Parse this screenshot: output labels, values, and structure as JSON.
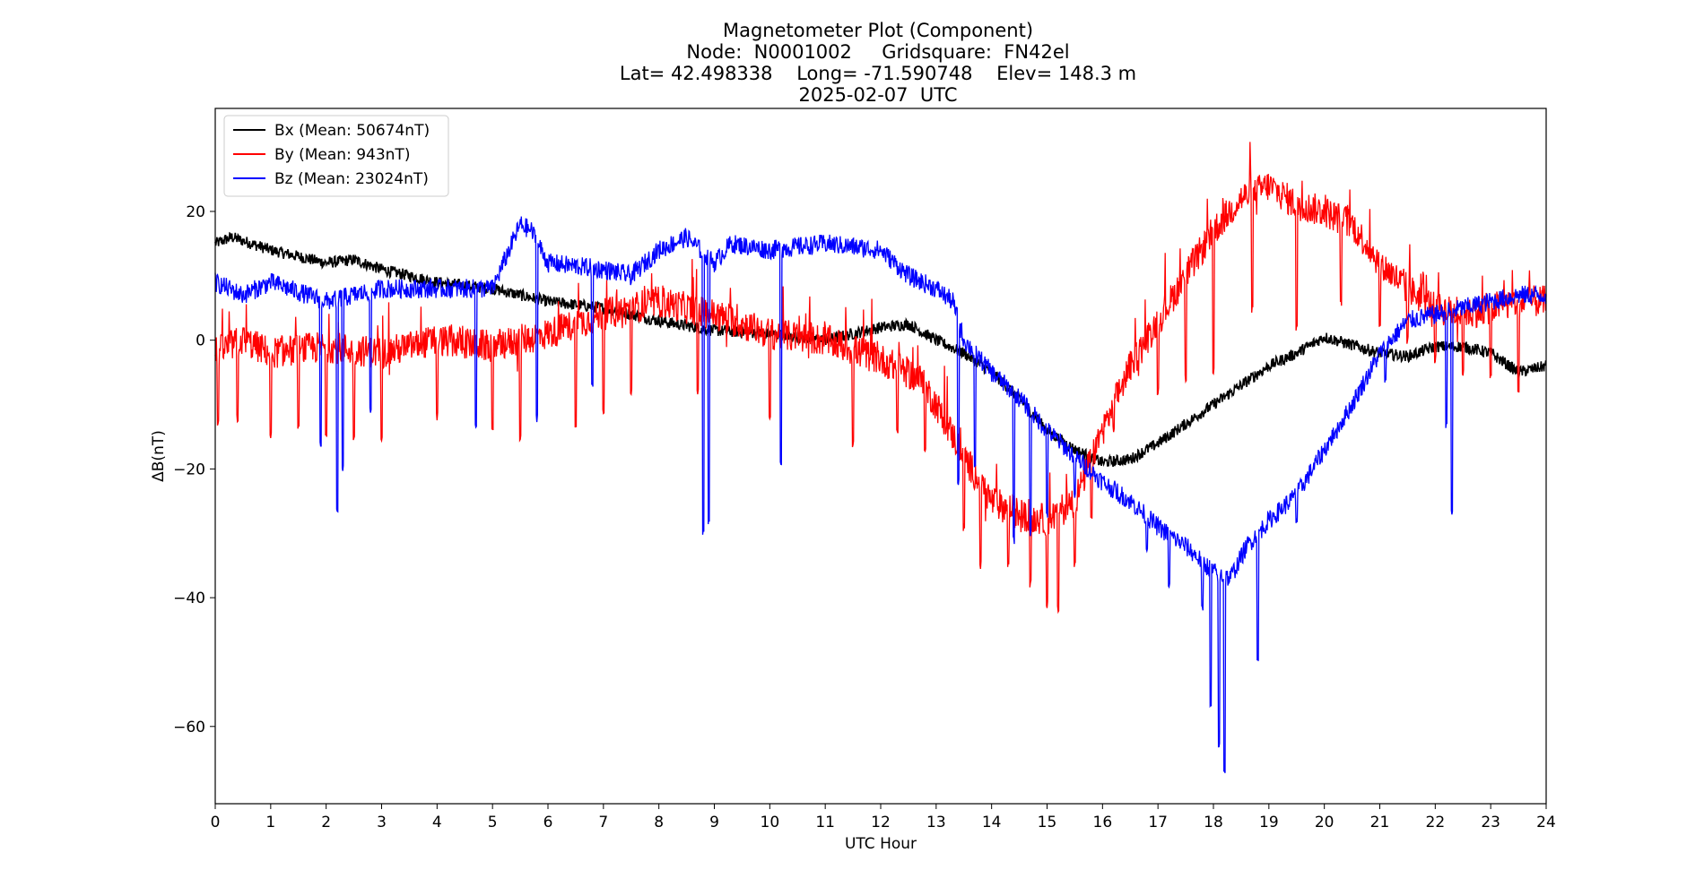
{
  "chart_data": {
    "type": "line",
    "title_lines": [
      "Magnetometer Plot (Component)",
      "Node:  N0001002     Gridsquare:  FN42el",
      "Lat= 42.498338    Long= -71.590748    Elev= 148.3 m",
      "2025-02-07  UTC"
    ],
    "xlabel": "UTC Hour",
    "ylabel": "ΔB(nT)",
    "xlim": [
      0,
      24
    ],
    "ylim": [
      -72,
      36
    ],
    "xticks": [
      0,
      1,
      2,
      3,
      4,
      5,
      6,
      7,
      8,
      9,
      10,
      11,
      12,
      13,
      14,
      15,
      16,
      17,
      18,
      19,
      20,
      21,
      22,
      23,
      24
    ],
    "yticks": [
      20,
      0,
      -20,
      -40,
      -60
    ],
    "ytick_labels": [
      "20",
      "0",
      "−20",
      "−40",
      "−60"
    ],
    "grid": false,
    "legend_position": "top-left",
    "series": [
      {
        "name": "Bx (Mean: 50674nT)",
        "color": "#000000",
        "noise": 0.9,
        "points": [
          [
            0,
            15
          ],
          [
            0.3,
            16
          ],
          [
            1,
            14
          ],
          [
            2,
            12
          ],
          [
            2.5,
            12.5
          ],
          [
            3,
            11
          ],
          [
            4,
            9
          ],
          [
            5,
            8
          ],
          [
            6,
            6
          ],
          [
            7,
            5
          ],
          [
            8,
            3
          ],
          [
            9,
            1.5
          ],
          [
            10,
            1
          ],
          [
            11,
            0
          ],
          [
            12,
            2
          ],
          [
            12.5,
            2.5
          ],
          [
            13,
            0
          ],
          [
            13.5,
            -2
          ],
          [
            14,
            -5
          ],
          [
            14.5,
            -9
          ],
          [
            15,
            -14
          ],
          [
            15.5,
            -17
          ],
          [
            16,
            -19
          ],
          [
            16.5,
            -18.5
          ],
          [
            17,
            -16
          ],
          [
            17.5,
            -13
          ],
          [
            18,
            -10
          ],
          [
            18.5,
            -7
          ],
          [
            19,
            -4
          ],
          [
            19.5,
            -2
          ],
          [
            20,
            0.5
          ],
          [
            20.4,
            -0.5
          ],
          [
            21,
            -2
          ],
          [
            21.5,
            -2.5
          ],
          [
            22,
            -1
          ],
          [
            22.5,
            -1
          ],
          [
            23,
            -2
          ],
          [
            23.5,
            -5
          ],
          [
            24,
            -4
          ]
        ]
      },
      {
        "name": "By (Mean: 943nT)",
        "color": "#ff0000",
        "noise": 2.5,
        "spikes": [
          [
            0.05,
            -13
          ],
          [
            0.4,
            -12
          ],
          [
            1,
            -15
          ],
          [
            1.5,
            -14
          ],
          [
            2,
            -15
          ],
          [
            2.5,
            -15
          ],
          [
            3,
            -15
          ],
          [
            4,
            -12
          ],
          [
            5,
            -14
          ],
          [
            5.5,
            -15
          ],
          [
            6.5,
            -13
          ],
          [
            7,
            -11
          ],
          [
            7.5,
            -8
          ],
          [
            8.7,
            -8
          ],
          [
            10,
            -12
          ],
          [
            11.5,
            -16
          ],
          [
            12.3,
            -14
          ],
          [
            12.8,
            -17
          ],
          [
            13.5,
            -29
          ],
          [
            13.8,
            -35
          ],
          [
            14.3,
            -35
          ],
          [
            14.7,
            -38
          ],
          [
            15,
            -41
          ],
          [
            15.2,
            -42
          ],
          [
            15.5,
            -35
          ],
          [
            15.8,
            -28
          ],
          [
            16.2,
            -14
          ],
          [
            17,
            -8
          ],
          [
            17.5,
            -6
          ],
          [
            18,
            -5
          ],
          [
            18.7,
            5
          ],
          [
            19.5,
            2
          ],
          [
            20.3,
            6
          ],
          [
            21,
            2
          ],
          [
            21.5,
            0
          ],
          [
            22,
            -3
          ],
          [
            22.5,
            -5
          ],
          [
            23,
            -6
          ],
          [
            23.5,
            -8
          ]
        ],
        "points": [
          [
            0,
            -2
          ],
          [
            0.5,
            0
          ],
          [
            1,
            -2
          ],
          [
            2,
            -1
          ],
          [
            3,
            -2
          ],
          [
            4,
            0
          ],
          [
            5,
            -1
          ],
          [
            6,
            1
          ],
          [
            7,
            4
          ],
          [
            8,
            6
          ],
          [
            9,
            4
          ],
          [
            10,
            1
          ],
          [
            11,
            0
          ],
          [
            12,
            -3
          ],
          [
            12.7,
            -6
          ],
          [
            13,
            -10
          ],
          [
            13.5,
            -18
          ],
          [
            14,
            -25
          ],
          [
            14.5,
            -27
          ],
          [
            15,
            -28
          ],
          [
            15.5,
            -25
          ],
          [
            16,
            -14
          ],
          [
            16.5,
            -4
          ],
          [
            17,
            3
          ],
          [
            17.5,
            10
          ],
          [
            18,
            17
          ],
          [
            18.5,
            22
          ],
          [
            19,
            24
          ],
          [
            19.5,
            21
          ],
          [
            20,
            20
          ],
          [
            20.5,
            18
          ],
          [
            21,
            12
          ],
          [
            21.5,
            8
          ],
          [
            22,
            5
          ],
          [
            22.5,
            4
          ],
          [
            23,
            5
          ],
          [
            23.5,
            6
          ],
          [
            24,
            6
          ]
        ]
      },
      {
        "name": "Bz (Mean: 23024nT)",
        "color": "#0000ff",
        "noise": 1.5,
        "spikes": [
          [
            1.9,
            -16
          ],
          [
            2.2,
            -27
          ],
          [
            2.3,
            -20
          ],
          [
            2.8,
            -11
          ],
          [
            4.7,
            -13
          ],
          [
            5.8,
            -12
          ],
          [
            6.8,
            -7
          ],
          [
            8.8,
            -30
          ],
          [
            8.9,
            -28
          ],
          [
            10.2,
            -19
          ],
          [
            13.4,
            -22
          ],
          [
            13.7,
            -20
          ],
          [
            14.4,
            -31
          ],
          [
            14.7,
            -30
          ],
          [
            15,
            -27
          ],
          [
            15.5,
            -24
          ],
          [
            16.3,
            -25
          ],
          [
            16.8,
            -32
          ],
          [
            17.2,
            -38
          ],
          [
            17.8,
            -42
          ],
          [
            17.95,
            -57
          ],
          [
            18.1,
            -63
          ],
          [
            18.2,
            -67
          ],
          [
            18.8,
            -50
          ],
          [
            19.5,
            -28
          ],
          [
            20.2,
            -14
          ],
          [
            21.1,
            -6
          ],
          [
            22.3,
            -27
          ],
          [
            22.2,
            -13
          ]
        ],
        "points": [
          [
            0,
            9
          ],
          [
            0.5,
            7
          ],
          [
            1,
            9
          ],
          [
            2,
            6
          ],
          [
            3,
            8
          ],
          [
            4,
            8
          ],
          [
            5,
            8
          ],
          [
            5.5,
            18
          ],
          [
            5.7,
            17
          ],
          [
            6,
            12
          ],
          [
            7,
            11
          ],
          [
            7.5,
            10
          ],
          [
            8,
            14
          ],
          [
            8.5,
            16
          ],
          [
            9,
            12
          ],
          [
            9.3,
            15
          ],
          [
            10,
            14
          ],
          [
            11,
            15
          ],
          [
            12,
            14
          ],
          [
            12.5,
            10
          ],
          [
            13,
            8
          ],
          [
            13.3,
            6
          ],
          [
            13.5,
            0
          ],
          [
            14,
            -5
          ],
          [
            14.5,
            -9
          ],
          [
            15,
            -14
          ],
          [
            15.5,
            -18
          ],
          [
            16,
            -22
          ],
          [
            16.5,
            -25
          ],
          [
            17,
            -29
          ],
          [
            17.5,
            -32
          ],
          [
            18,
            -36
          ],
          [
            18.3,
            -37
          ],
          [
            18.6,
            -32
          ],
          [
            19,
            -28
          ],
          [
            19.5,
            -24
          ],
          [
            20,
            -17
          ],
          [
            20.5,
            -10
          ],
          [
            21,
            -2
          ],
          [
            21.5,
            3
          ],
          [
            22,
            4
          ],
          [
            22.5,
            5
          ],
          [
            23,
            6
          ],
          [
            23.5,
            7
          ],
          [
            24,
            7
          ]
        ]
      }
    ]
  }
}
